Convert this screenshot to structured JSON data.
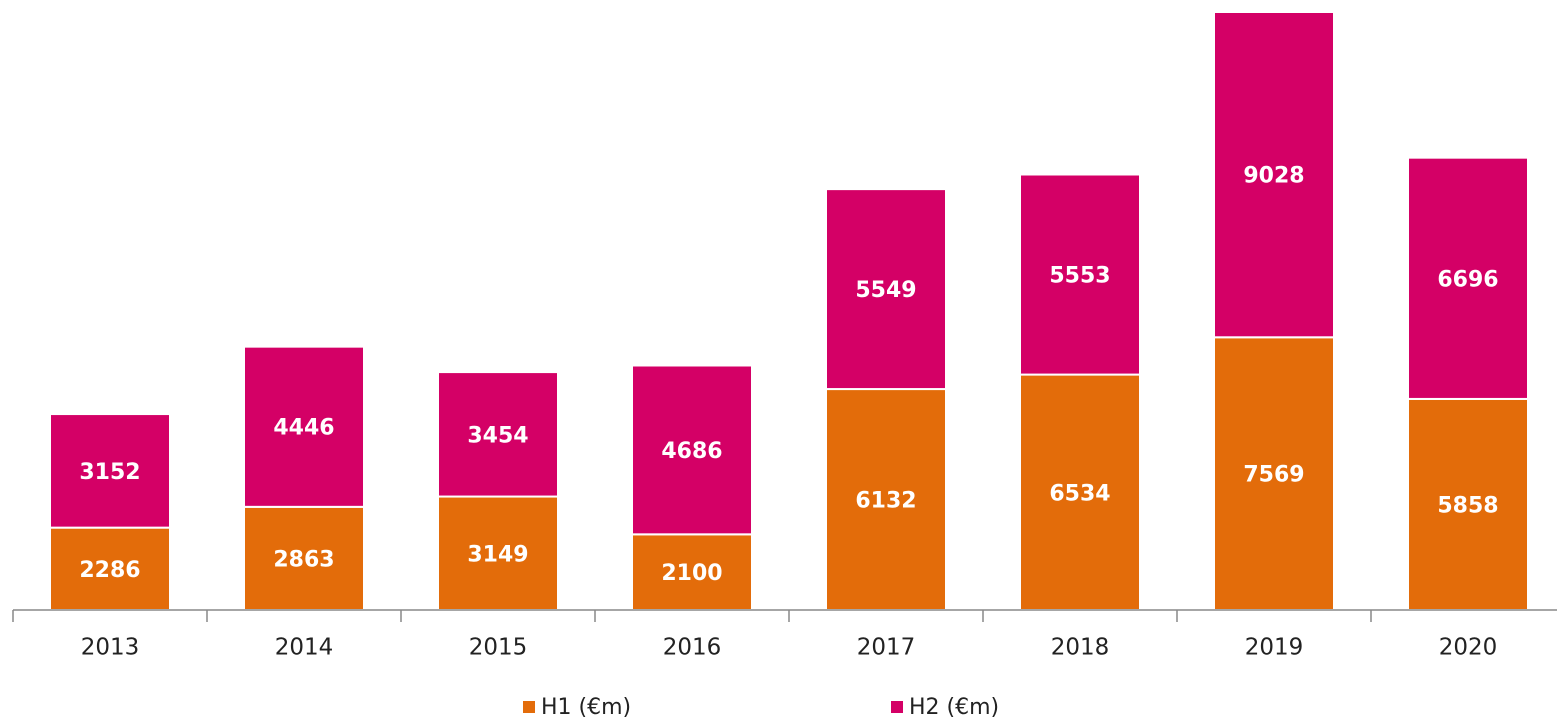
{
  "chart_data": {
    "type": "stacked_bar",
    "categories": [
      "2013",
      "2014",
      "2015",
      "2016",
      "2017",
      "2018",
      "2019",
      "2020"
    ],
    "series": [
      {
        "name": "H1 (€m)",
        "color": "#e36c0a",
        "values": [
          2286,
          2863,
          3149,
          2100,
          6132,
          6534,
          7569,
          5858
        ]
      },
      {
        "name": "H2 (€m)",
        "color": "#d40066",
        "values": [
          3152,
          4446,
          3454,
          4686,
          5549,
          5553,
          9028,
          6696
        ]
      }
    ],
    "legend": "bottom"
  }
}
